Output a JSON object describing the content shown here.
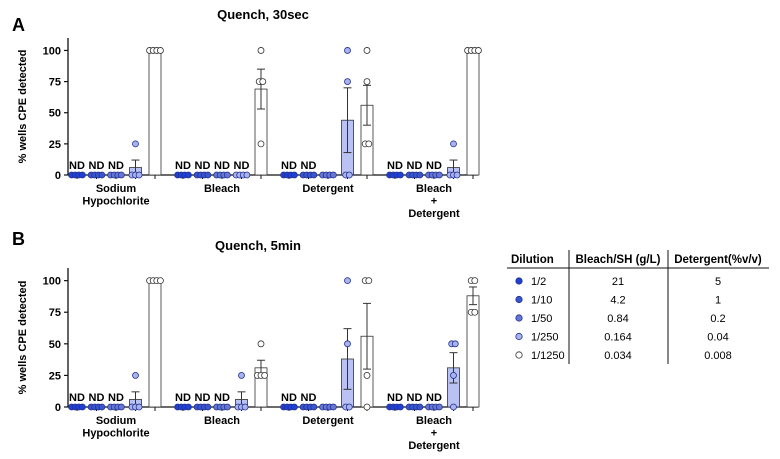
{
  "chart_data": [
    {
      "type": "bar",
      "panel_label": "A",
      "title": "Quench, 30sec",
      "ylabel": "% wells CPE detected",
      "ylim": [
        0,
        110
      ],
      "yticks": [
        0,
        25,
        50,
        75,
        100
      ],
      "categories": [
        "Sodium\nHypochlorite",
        "Bleach",
        "Detergent",
        "Bleach\n+\nDetergent"
      ],
      "series": [
        {
          "name": "1/2",
          "color": "#1f3fd6",
          "values": [
            0,
            0,
            0,
            0
          ],
          "sem": [
            0,
            0,
            0,
            0
          ],
          "points": [
            [
              0,
              0,
              0,
              0
            ],
            [
              0,
              0,
              0,
              0
            ],
            [
              0,
              0,
              0,
              0
            ],
            [
              0,
              0,
              0,
              0
            ]
          ],
          "nd": [
            true,
            true,
            true,
            true
          ]
        },
        {
          "name": "1/10",
          "color": "#3b55cf",
          "values": [
            0,
            0,
            0,
            0
          ],
          "sem": [
            0,
            0,
            0,
            0
          ],
          "points": [
            [
              0,
              0,
              0,
              0
            ],
            [
              0,
              0,
              0,
              0
            ],
            [
              0,
              0,
              0,
              0
            ],
            [
              0,
              0,
              0,
              0
            ]
          ],
          "nd": [
            true,
            true,
            true,
            true
          ]
        },
        {
          "name": "1/50",
          "color": "#6676d6",
          "values": [
            0,
            0,
            0,
            0
          ],
          "sem": [
            0,
            0,
            0,
            0
          ],
          "points": [
            [
              0,
              0,
              0,
              0
            ],
            [
              0,
              0,
              0,
              0
            ],
            [
              0,
              0,
              0,
              0
            ],
            [
              0,
              0,
              0,
              0
            ]
          ],
          "nd": [
            true,
            true,
            false,
            true
          ]
        },
        {
          "name": "1/250",
          "color": "#a8b2ee",
          "values": [
            6,
            0,
            44,
            6
          ],
          "sem": [
            6,
            0,
            26,
            6
          ],
          "points": [
            [
              25,
              0,
              0,
              0
            ],
            [
              0,
              0,
              0,
              0
            ],
            [
              100,
              75,
              0,
              0
            ],
            [
              25,
              0,
              0,
              0
            ]
          ],
          "nd": [
            false,
            true,
            false,
            false
          ]
        },
        {
          "name": "1/1250",
          "color": "#ffffff",
          "values": [
            100,
            69,
            56,
            100
          ],
          "sem": [
            0,
            16,
            16,
            0
          ],
          "points": [
            [
              100,
              100,
              100,
              100
            ],
            [
              100,
              75,
              75,
              25
            ],
            [
              100,
              75,
              25,
              25
            ],
            [
              100,
              100,
              100,
              100
            ]
          ],
          "nd": [
            false,
            false,
            false,
            false
          ]
        }
      ]
    },
    {
      "type": "bar",
      "panel_label": "B",
      "title": "Quench, 5min",
      "ylabel": "% wells CPE detected",
      "ylim": [
        0,
        110
      ],
      "yticks": [
        0,
        25,
        50,
        75,
        100
      ],
      "categories": [
        "Sodium\nHypochlorite",
        "Bleach",
        "Detergent",
        "Bleach\n+\nDetergent"
      ],
      "series": [
        {
          "name": "1/2",
          "color": "#1f3fd6",
          "values": [
            0,
            0,
            0,
            0
          ],
          "sem": [
            0,
            0,
            0,
            0
          ],
          "points": [
            [
              0,
              0,
              0,
              0
            ],
            [
              0,
              0,
              0,
              0
            ],
            [
              0,
              0,
              0,
              0
            ],
            [
              0,
              0,
              0,
              0
            ]
          ],
          "nd": [
            true,
            true,
            true,
            true
          ]
        },
        {
          "name": "1/10",
          "color": "#3b55cf",
          "values": [
            0,
            0,
            0,
            0
          ],
          "sem": [
            0,
            0,
            0,
            0
          ],
          "points": [
            [
              0,
              0,
              0,
              0
            ],
            [
              0,
              0,
              0,
              0
            ],
            [
              0,
              0,
              0,
              0
            ],
            [
              0,
              0,
              0,
              0
            ]
          ],
          "nd": [
            true,
            true,
            true,
            true
          ]
        },
        {
          "name": "1/50",
          "color": "#6676d6",
          "values": [
            0,
            0,
            0,
            0
          ],
          "sem": [
            0,
            0,
            0,
            0
          ],
          "points": [
            [
              0,
              0,
              0,
              0
            ],
            [
              0,
              0,
              0,
              0
            ],
            [
              0,
              0,
              0,
              0
            ],
            [
              0,
              0,
              0,
              0
            ]
          ],
          "nd": [
            true,
            true,
            false,
            true
          ]
        },
        {
          "name": "1/250",
          "color": "#a8b2ee",
          "values": [
            6,
            6,
            38,
            31
          ],
          "sem": [
            6,
            6,
            24,
            12
          ],
          "points": [
            [
              25,
              0,
              0,
              0
            ],
            [
              25,
              0,
              0,
              0
            ],
            [
              100,
              50,
              0,
              0
            ],
            [
              50,
              50,
              25,
              0
            ]
          ],
          "nd": [
            false,
            false,
            false,
            false
          ]
        },
        {
          "name": "1/1250",
          "color": "#ffffff",
          "values": [
            100,
            31,
            56,
            88
          ],
          "sem": [
            0,
            6,
            26,
            7
          ],
          "points": [
            [
              100,
              100,
              100,
              100
            ],
            [
              50,
              25,
              25,
              25
            ],
            [
              100,
              100,
              25,
              0
            ],
            [
              100,
              100,
              75,
              75
            ]
          ],
          "nd": [
            false,
            false,
            false,
            false
          ]
        }
      ]
    }
  ],
  "nd_label": "ND",
  "table": {
    "headers": [
      "Dilution",
      "Bleach/SH (g/L)",
      "Detergent(%v/v)"
    ],
    "rows": [
      {
        "dilution": "1/2",
        "bleach": "21",
        "detergent": "5",
        "color": "#1f3fd6"
      },
      {
        "dilution": "1/10",
        "bleach": "4.2",
        "detergent": "1",
        "color": "#3b55cf"
      },
      {
        "dilution": "1/50",
        "bleach": "0.84",
        "detergent": "0.2",
        "color": "#6676d6"
      },
      {
        "dilution": "1/250",
        "bleach": "0.164",
        "detergent": "0.04",
        "color": "#a8b2ee"
      },
      {
        "dilution": "1/1250",
        "bleach": "0.034",
        "detergent": "0.008",
        "color": "#ffffff"
      }
    ]
  }
}
